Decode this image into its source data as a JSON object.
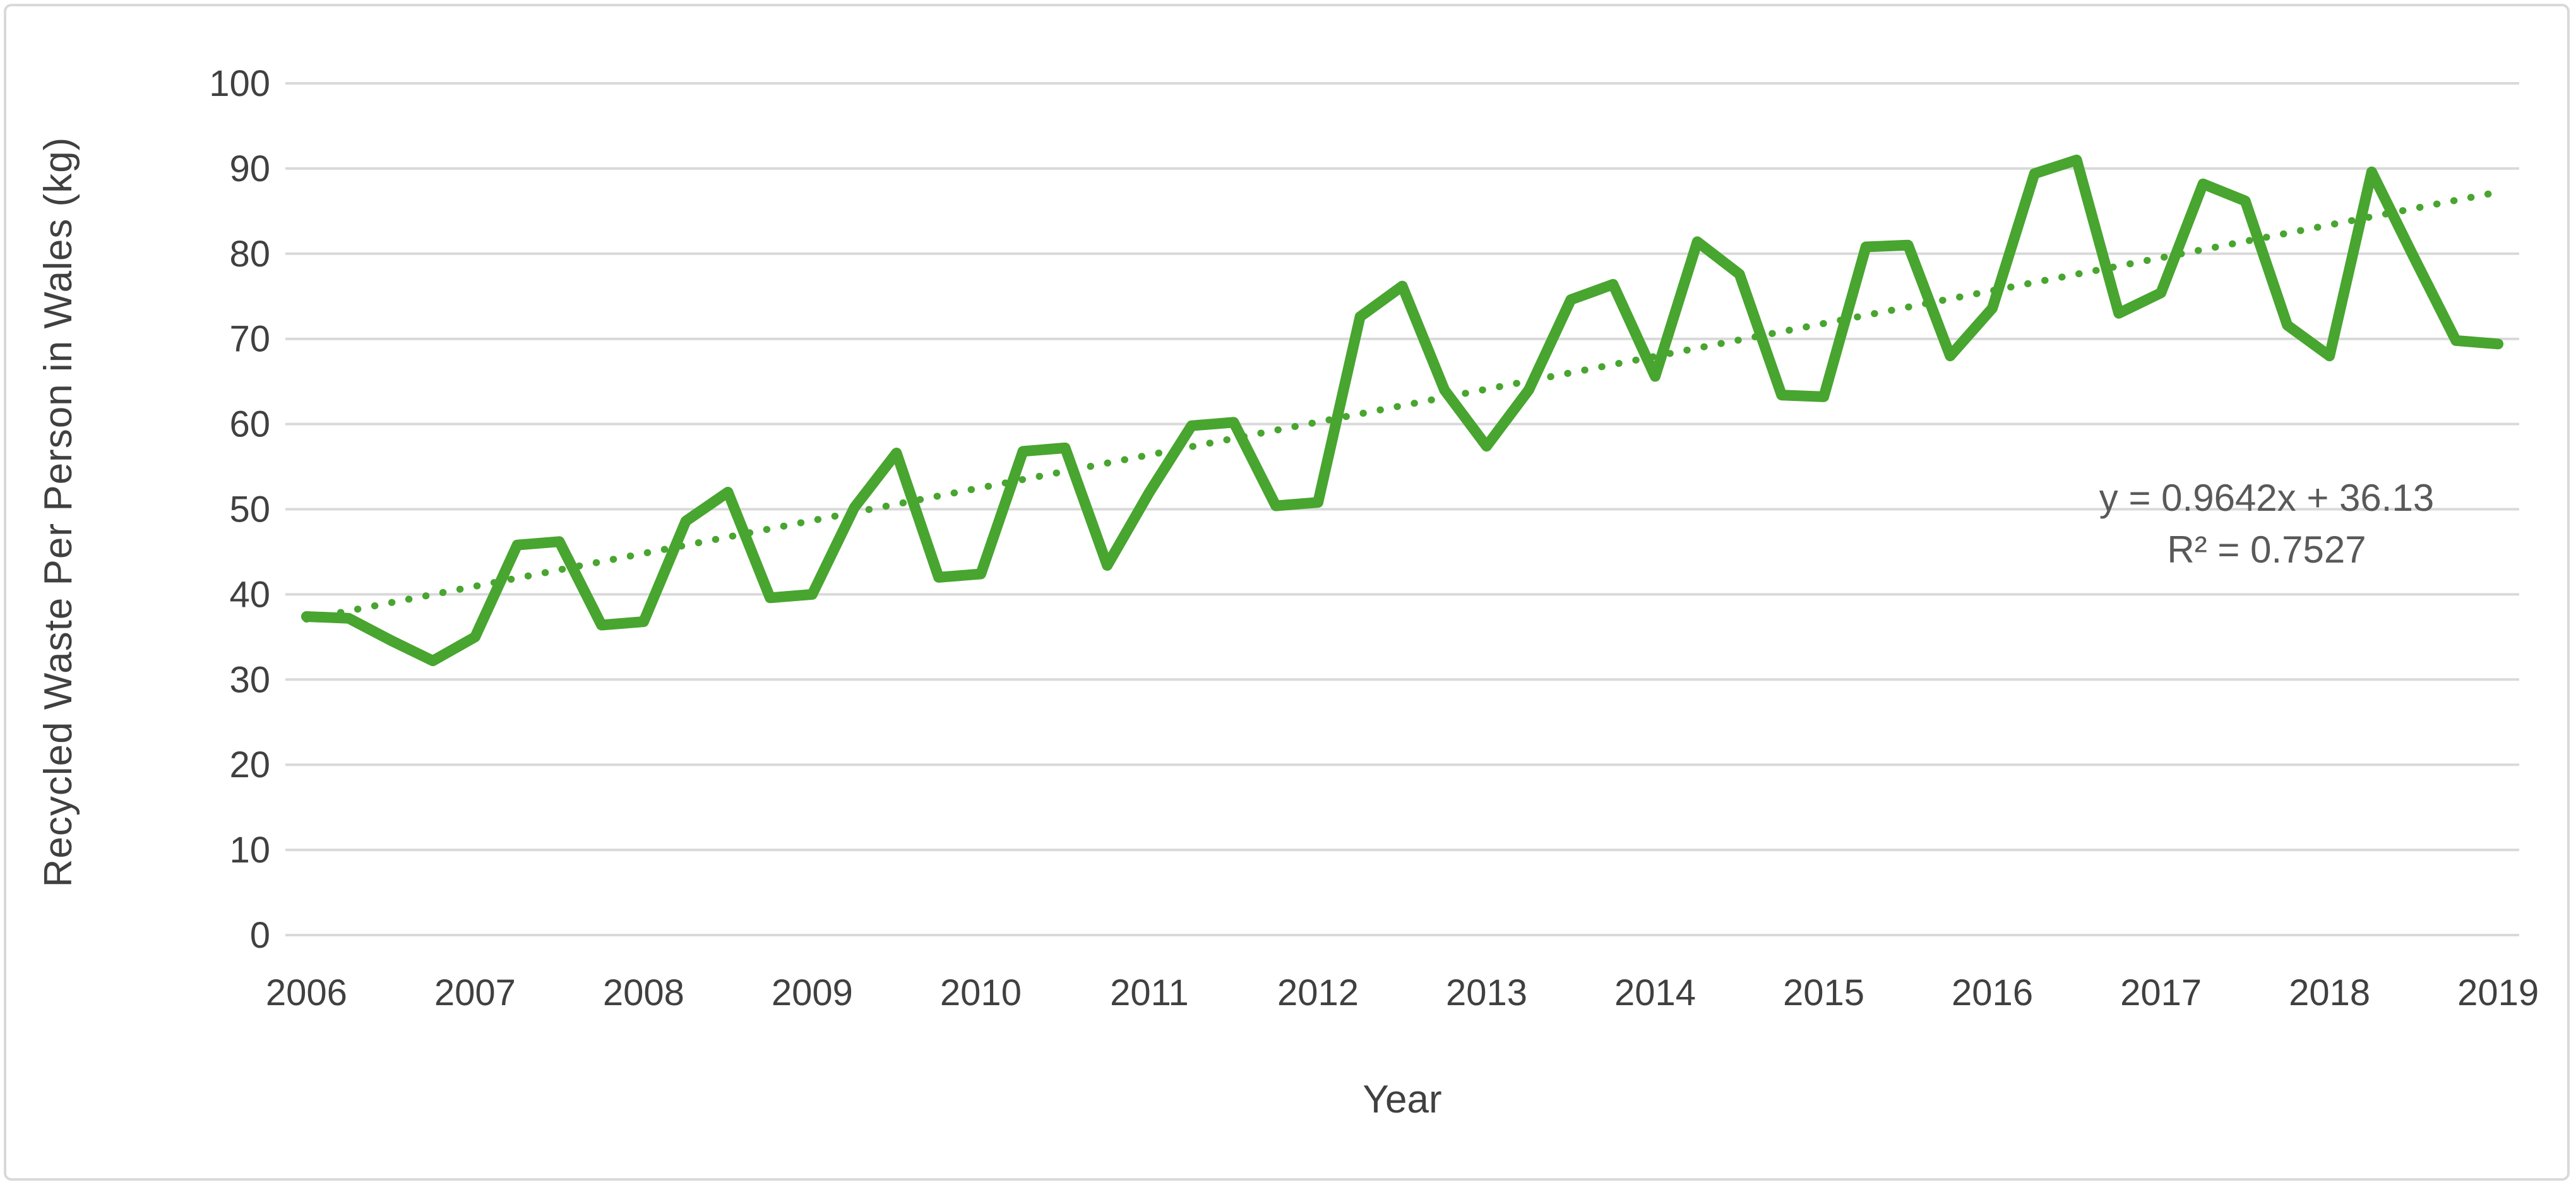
{
  "chart_data": {
    "type": "line",
    "title": "",
    "xlabel": "Year",
    "ylabel": "Recycled Waste Per Person in Wales (kg)",
    "ylim": [
      0,
      100
    ],
    "ytick_step": 10,
    "grid": "horizontal",
    "legend": "none",
    "frequency": "quarterly",
    "start_year": 2006,
    "year_tick_labels": [
      "2006",
      "2007",
      "2008",
      "2009",
      "2010",
      "2011",
      "2012",
      "2013",
      "2014",
      "2015",
      "2016",
      "2017",
      "2018",
      "2019"
    ],
    "series": [
      {
        "name": "Recycled waste per person in Wales (kg), quarterly",
        "values": [
          37.4,
          37.2,
          34.6,
          32.2,
          35.0,
          45.8,
          46.2,
          36.4,
          36.8,
          48.6,
          52.0,
          39.6,
          40.0,
          50.2,
          56.6,
          42.0,
          42.4,
          56.8,
          57.2,
          43.4,
          52.0,
          59.8,
          60.2,
          50.4,
          50.8,
          72.6,
          76.2,
          64.0,
          57.4,
          64.0,
          74.6,
          76.4,
          65.6,
          81.4,
          77.6,
          63.4,
          63.2,
          80.8,
          81.0,
          68.0,
          73.6,
          89.4,
          91.0,
          73.0,
          75.4,
          88.2,
          86.2,
          71.6,
          68.0,
          89.6,
          79.6,
          69.8,
          69.4
        ]
      }
    ],
    "trendline": {
      "equation": "y = 0.9642x + 36.13",
      "r_squared": "R² = 0.7527",
      "slope": 0.9642,
      "intercept": 36.13,
      "style": "dotted"
    },
    "colors": {
      "line_green": "#48a52f",
      "trendline_green": "#48a52f",
      "gridline_gray": "#d9d9d9",
      "axis_text_gray": "#404040",
      "annotation_gray": "#595959",
      "background": "#ffffff"
    }
  }
}
